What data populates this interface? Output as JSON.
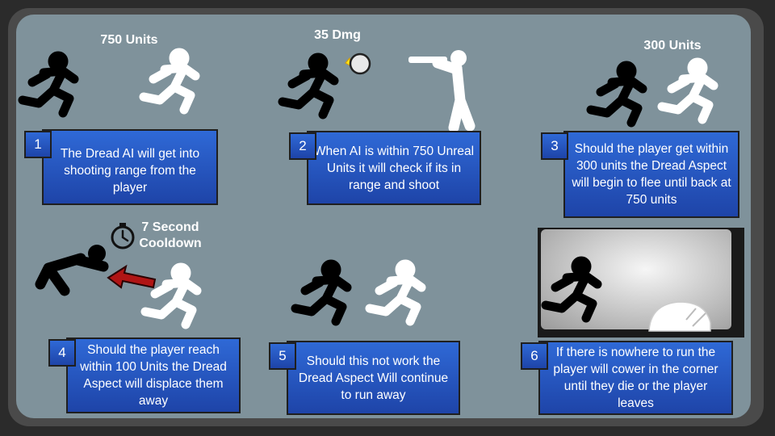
{
  "steps": [
    {
      "number": "1",
      "text": "The Dread AI will get into shooting range from the player",
      "header": "750 Units"
    },
    {
      "number": "2",
      "text": "When AI is within 750 Unreal Units it will check if its in range and shoot",
      "header": "35 Dmg"
    },
    {
      "number": "3",
      "text": "Should the player get within 300 units the Dread Aspect will begin to flee until back at 750 units",
      "header": "300 Units"
    },
    {
      "number": "4",
      "text": "Should the player reach within 100 Units the Dread Aspect will displace them away",
      "header": "7 Second Cooldown"
    },
    {
      "number": "5",
      "text": "Should this not work the Dread Aspect Will continue to run away",
      "header": ""
    },
    {
      "number": "6",
      "text": "If there is nowhere to run the player will cower in the corner until they die or the player leaves",
      "header": ""
    }
  ],
  "colors": {
    "box": "#2a5cc8",
    "background": "#7f929b",
    "player": "#000000",
    "dread": "#ffffff",
    "arrow": "#b01515"
  },
  "icons": [
    "runner-icon",
    "gunman-icon",
    "projectile-icon",
    "stopwatch-icon",
    "arrow-icon",
    "cowering-figure-icon"
  ]
}
